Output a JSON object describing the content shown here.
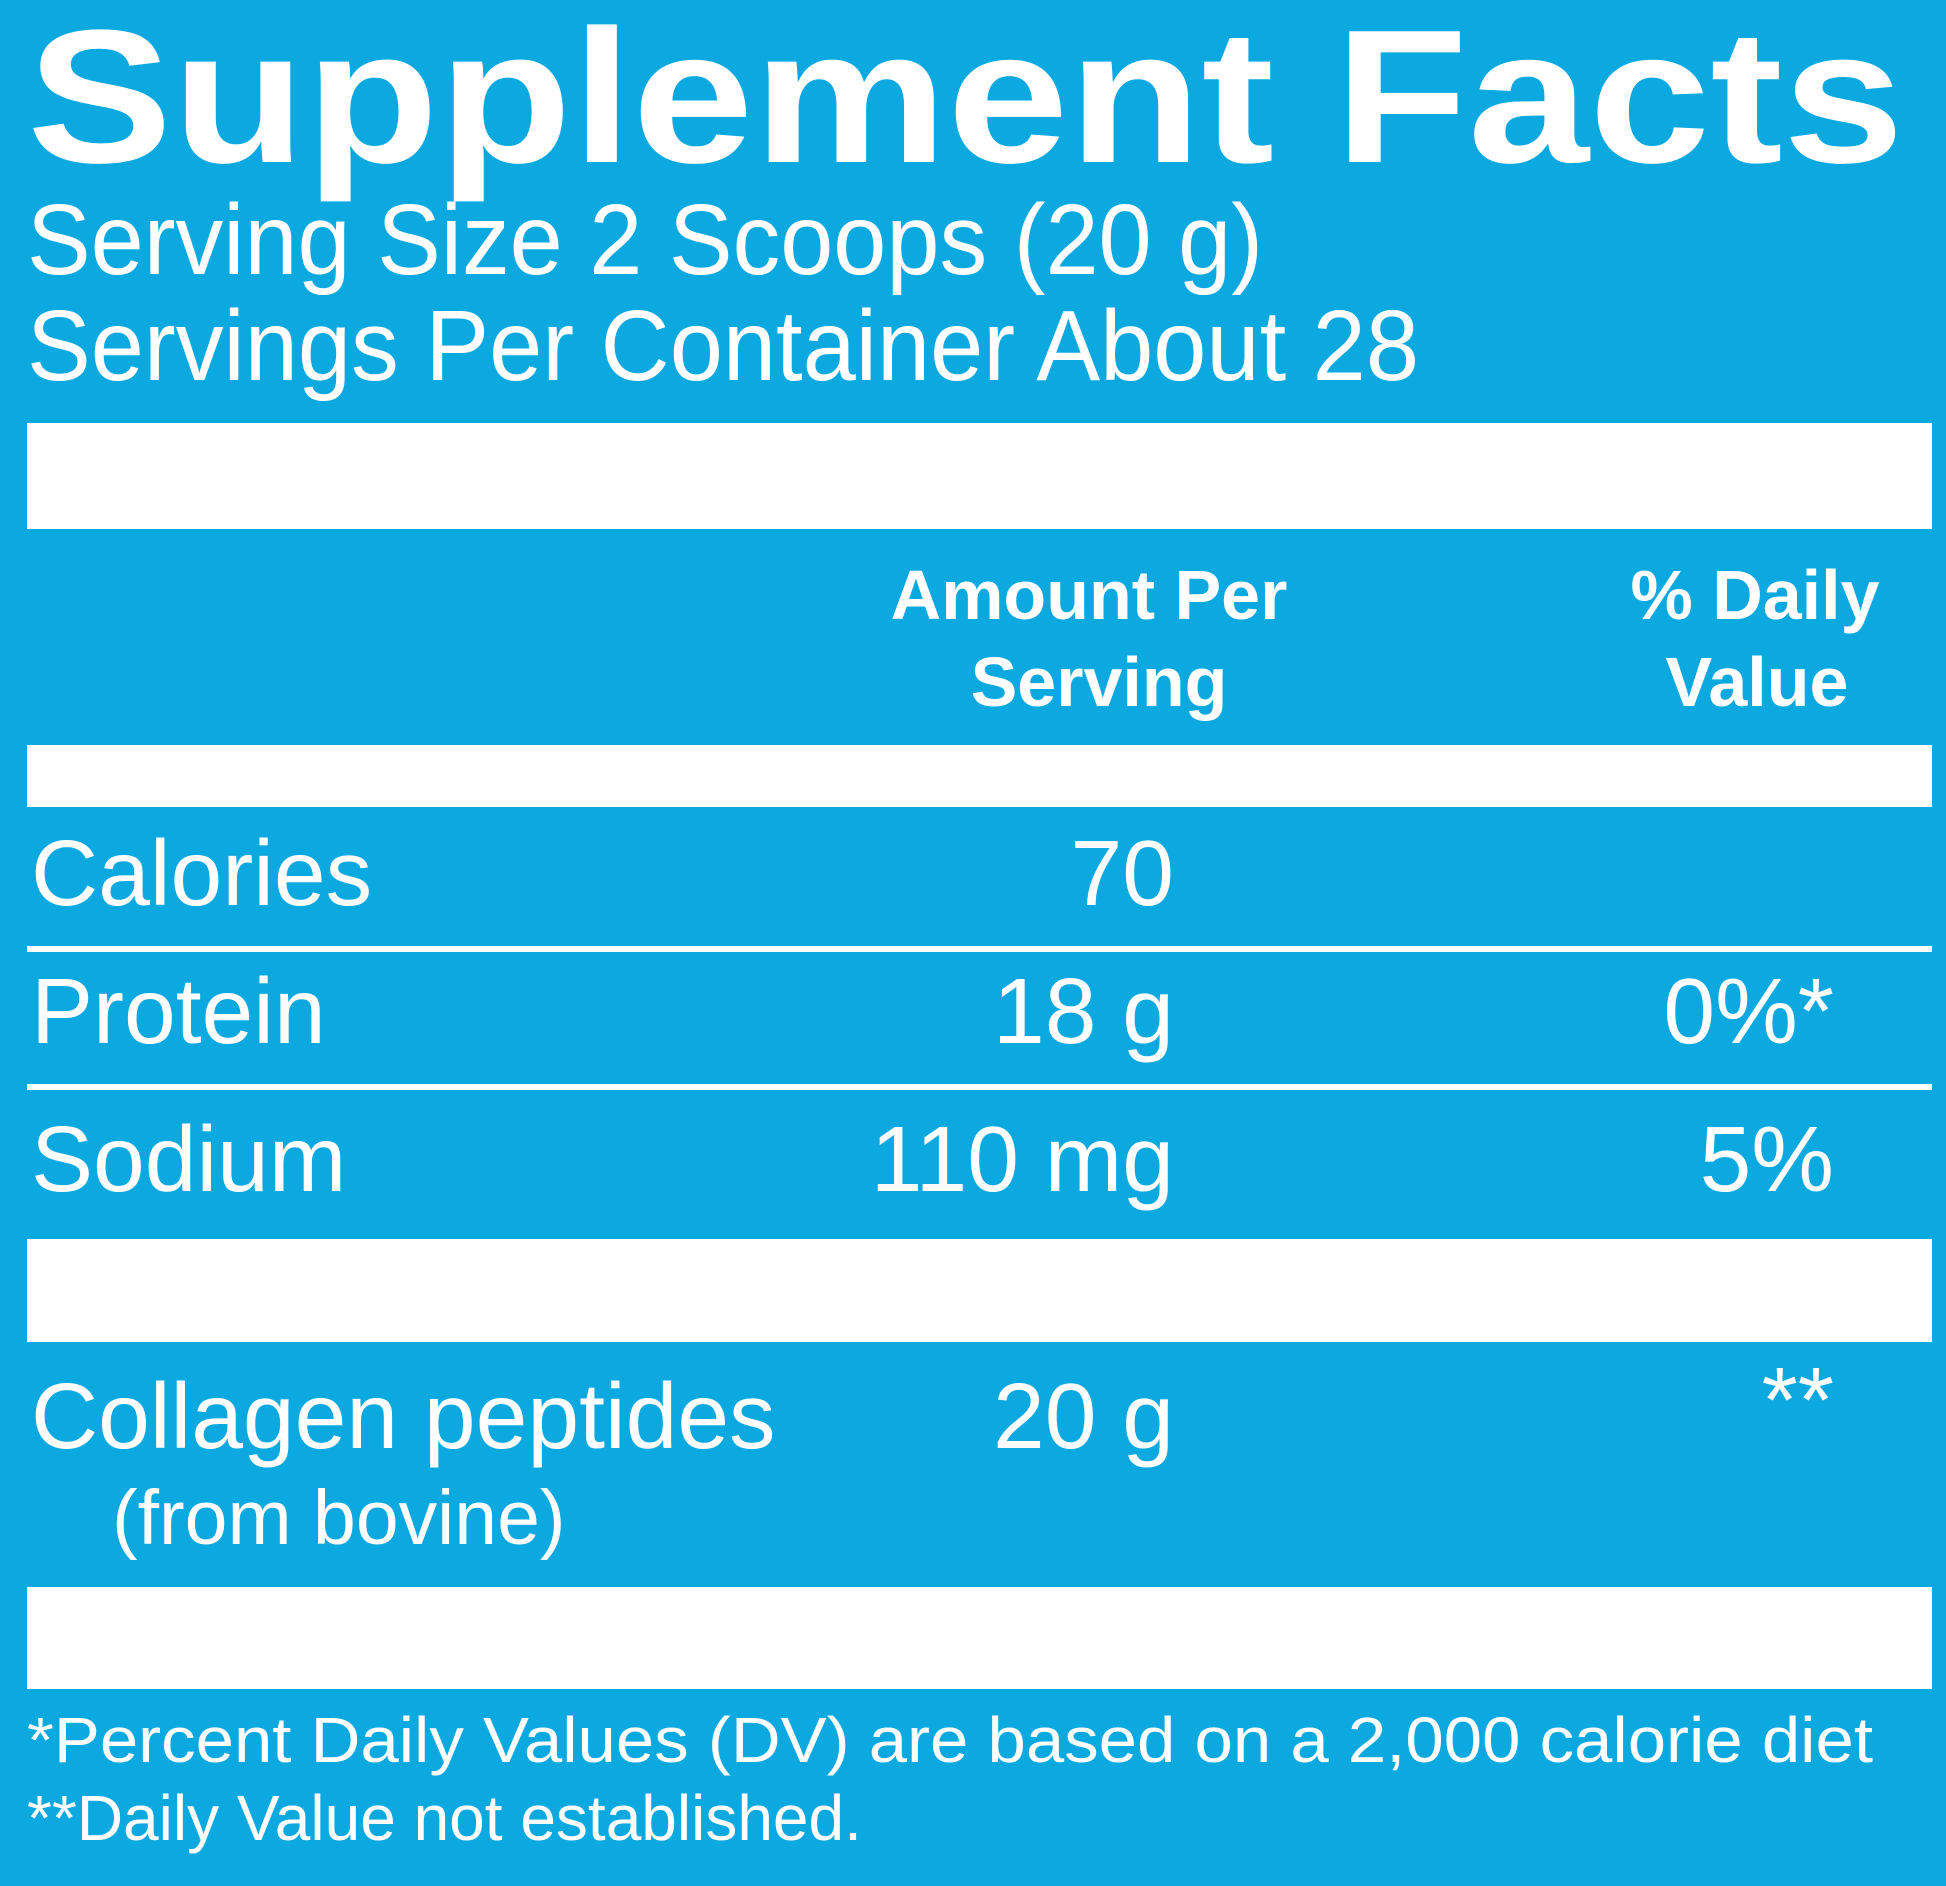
{
  "header": {
    "title": "Supplement Facts",
    "serving_size": "Serving Size 2 Scoops (20 g)",
    "servings_per_container": "Servings Per Container About 28"
  },
  "table": {
    "columns": [
      {
        "line1": "Amount Per",
        "line2": "Serving"
      },
      {
        "line1": "% Daily",
        "line2": "Value"
      }
    ],
    "rows": [
      {
        "name": "Calories",
        "amount": "70"
      },
      {
        "name": "Protein",
        "amount": "18 g",
        "dv": "0%*"
      },
      {
        "name": "Sodium",
        "amount": "110 mg",
        "dv": "5%"
      },
      {
        "name": "Collagen peptides",
        "note": "(from bovine)",
        "amount": "20 g",
        "dv": "**"
      }
    ]
  },
  "footnotes": [
    "*Percent Daily Values (DV) are based on a 2,000 calorie diet",
    "**Daily Value not established."
  ]
}
